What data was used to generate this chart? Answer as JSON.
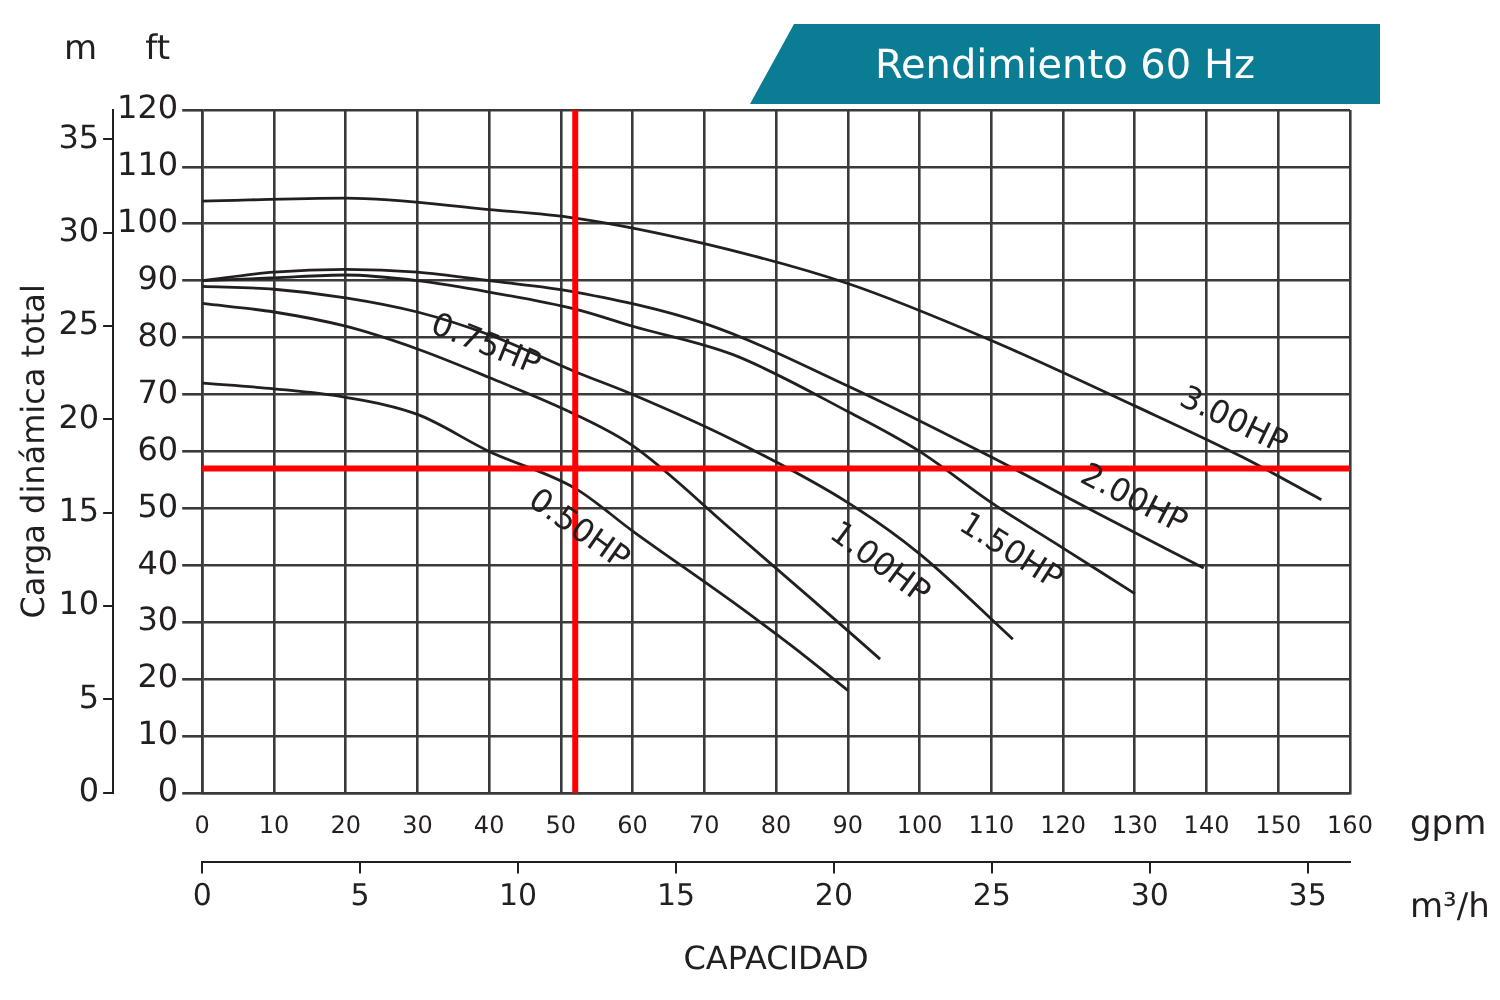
{
  "chart_data": {
    "type": "line",
    "title": "Rendimiento 60 Hz",
    "xlabel": "CAPACIDAD",
    "ylabel": "Carga dinámica total",
    "annotations": [
      "m",
      "ft",
      "gpm",
      "m³/h"
    ],
    "xlim": [
      0,
      160
    ],
    "xticks": [
      0,
      10,
      20,
      30,
      40,
      50,
      60,
      70,
      80,
      90,
      100,
      110,
      120,
      130,
      140,
      150,
      160
    ],
    "y2lim": [
      0,
      120
    ],
    "y2ticks": [
      0,
      10,
      20,
      30,
      40,
      50,
      60,
      70,
      80,
      90,
      100,
      110,
      120
    ],
    "x2lim": [
      0,
      36.34
    ],
    "x2ticks": [
      0,
      5,
      10,
      15,
      20,
      25,
      30,
      35
    ],
    "ylim": [
      0,
      36.58
    ],
    "yticks": [
      0,
      5,
      10,
      15,
      20,
      25,
      30,
      35
    ],
    "grid": true,
    "legend": false,
    "marker": "none",
    "line_style": "solid",
    "ref_lines": [
      {
        "axis": "y2",
        "value": 57,
        "label": null,
        "color": "#ff0000"
      },
      {
        "axis": "x",
        "value": 52,
        "label": null,
        "color": "#ff0000"
      }
    ],
    "series": [
      {
        "name": "0.50HP",
        "axis": "y2",
        "color": "#231f20",
        "x": [
          0,
          10,
          20,
          30,
          40,
          52,
          60,
          74,
          82,
          90
        ],
        "values": [
          72,
          71,
          69.5,
          66.5,
          60,
          53.5,
          46,
          33.5,
          26,
          18
        ]
      },
      {
        "name": "0.75HP",
        "axis": "y2",
        "color": "#231f20",
        "x": [
          0,
          10,
          20,
          30,
          40,
          52,
          60,
          74,
          85,
          94.5
        ],
        "values": [
          86,
          84.5,
          82,
          78,
          73,
          66.5,
          61,
          46,
          34,
          23.5
        ]
      },
      {
        "name": "1.00HP",
        "axis": "y2",
        "color": "#231f20",
        "x": [
          0,
          10,
          20,
          30,
          40,
          52,
          60,
          74,
          90,
          100,
          113
        ],
        "values": [
          89,
          88.5,
          87,
          84.5,
          80.5,
          74,
          70,
          62,
          51,
          42,
          27
        ]
      },
      {
        "name": "1.50HP",
        "axis": "y2",
        "color": "#231f20",
        "x": [
          0,
          10,
          20,
          30,
          40,
          52,
          60,
          74,
          90,
          100,
          110,
          120,
          130
        ],
        "values": [
          90,
          90.5,
          91,
          90,
          88,
          85,
          82,
          77,
          67,
          60,
          51,
          43,
          35
        ]
      },
      {
        "name": "2.00HP",
        "axis": "y2",
        "color": "#231f20",
        "x": [
          0,
          10,
          20,
          30,
          40,
          52,
          70,
          90,
          110,
          125,
          139.6
        ],
        "values": [
          90,
          91.5,
          92,
          91.5,
          90,
          88,
          82.5,
          71.5,
          59,
          49,
          39.5
        ]
      },
      {
        "name": "3.00HP",
        "axis": "y2",
        "color": "#231f20",
        "x": [
          0,
          20,
          40,
          52,
          70,
          90,
          110,
          130,
          145,
          156
        ],
        "values": [
          104,
          104.5,
          102.5,
          101,
          96.5,
          89.5,
          79.5,
          68,
          59,
          51.5
        ]
      }
    ]
  }
}
